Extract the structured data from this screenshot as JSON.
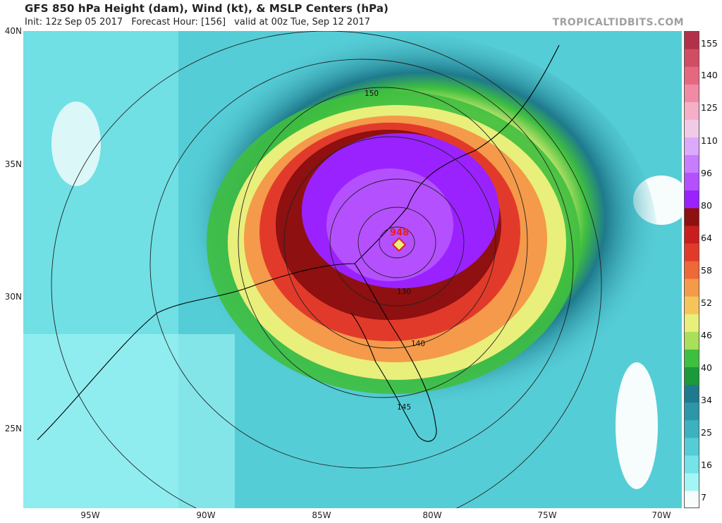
{
  "header": {
    "title": "GFS 850 hPa Height (dam), Wind (kt), & MSLP Centers (hPa)",
    "init": "Init: 12z Sep 05 2017",
    "forecast_hour": "Forecast Hour: [156]",
    "valid": "valid at 00z Tue, Sep 12 2017",
    "brand": "TROPICALTIDBITS.COM"
  },
  "axes": {
    "lat_labels": [
      "40N",
      "35N",
      "30N",
      "25N"
    ],
    "lon_labels": [
      "95W",
      "90W",
      "85W",
      "80W",
      "75W",
      "70W"
    ]
  },
  "map": {
    "storm_center_label": "948",
    "height_contour_labels": [
      "150",
      "130",
      "140",
      "145"
    ]
  },
  "colorbar": {
    "labels": [
      "155",
      "140",
      "125",
      "110",
      "96",
      "80",
      "64",
      "58",
      "52",
      "46",
      "40",
      "34",
      "25",
      "16",
      "7"
    ],
    "colors": [
      "#f7fdfd",
      "#a4f5f5",
      "#75e3e8",
      "#55cdd6",
      "#3cb2c0",
      "#2c97a8",
      "#1e7a8c",
      "#1a9a3a",
      "#3fbf3f",
      "#a9e05a",
      "#e8ef7a",
      "#f6c55a",
      "#f49a4a",
      "#ef6838",
      "#e23a2a",
      "#c81e1e",
      "#8e1010",
      "#9a22ff",
      "#b550ff",
      "#c87cff",
      "#dcaafc",
      "#f0cbe6",
      "#f5b0c8",
      "#f08aa5",
      "#e66880",
      "#d24c64",
      "#b2304a"
    ]
  }
}
